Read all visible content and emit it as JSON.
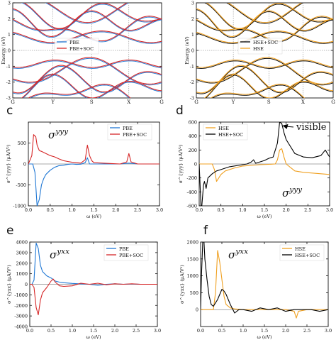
{
  "panel_labels": {
    "c": "c",
    "d": "d",
    "e": "e",
    "f": "f"
  },
  "colors": {
    "blue": "#1f77d4",
    "red": "#d62728",
    "orange": "#f0a020",
    "black": "#000000"
  },
  "chart_data": [
    {
      "id": "bands-pbe",
      "type": "line",
      "ylabel": "Energy (eV)",
      "ylim": [
        -3,
        3
      ],
      "y_ticks": [
        "-3",
        "-2",
        "-1",
        "0",
        "1",
        "2",
        "3"
      ],
      "x_ticks": [
        "G",
        "Y",
        "S",
        "X",
        "G"
      ],
      "legend": [
        "PBE",
        "PBE+SOC"
      ],
      "legend_placement": "center-left",
      "series": [
        {
          "name": "PBE",
          "color": "#1f77d4"
        },
        {
          "name": "PBE+SOC",
          "color": "#d62728"
        }
      ]
    },
    {
      "id": "bands-hse",
      "type": "line",
      "ylabel": "Energy (eV)",
      "ylim": [
        -3,
        3
      ],
      "y_ticks": [
        "-3",
        "-2",
        "-1",
        "0",
        "1",
        "2",
        "3"
      ],
      "x_ticks": [
        "G",
        "Y",
        "S",
        "X",
        "G"
      ],
      "legend": [
        "HSE+SOC",
        "HSE"
      ],
      "legend_placement": "center-left",
      "series": [
        {
          "name": "HSE+SOC",
          "color": "#000000"
        },
        {
          "name": "HSE",
          "color": "#f0a020"
        }
      ]
    },
    {
      "id": "sigma-yyy-pbe",
      "type": "line",
      "ylabel": "σ^{yyy} (μA/V²)",
      "xlabel": "ω (eV)",
      "title_symbol": "σ",
      "title_sup": "yyy",
      "xlim": [
        0,
        3
      ],
      "ylim": [
        -1000,
        1000
      ],
      "y_ticks": [
        "-1000",
        "-500",
        "0",
        "500"
      ],
      "x_ticks": [
        "0.0",
        "0.5",
        "1.0",
        "1.5",
        "2.0",
        "2.5",
        "3.0"
      ],
      "legend_placement": "top-right",
      "series": [
        {
          "name": "PBE",
          "color": "#1f77d4",
          "x": [
            0,
            0.1,
            0.15,
            0.2,
            0.25,
            0.3,
            0.35,
            0.4,
            0.5,
            0.6,
            0.7,
            0.8,
            0.9,
            1.0,
            1.1,
            1.2,
            1.3,
            1.35,
            1.4,
            1.5,
            1.7,
            1.9,
            2.1,
            2.3,
            2.5,
            2.7,
            3.0
          ],
          "y": [
            0,
            0,
            -200,
            -1000,
            -850,
            -500,
            -350,
            -250,
            -150,
            -80,
            -40,
            -30,
            -10,
            0,
            -10,
            -5,
            30,
            150,
            0,
            0,
            0,
            0,
            0,
            20,
            0,
            0,
            0
          ]
        },
        {
          "name": "PBE+SOC",
          "color": "#d62728",
          "x": [
            0,
            0.08,
            0.12,
            0.17,
            0.2,
            0.25,
            0.3,
            0.4,
            0.5,
            0.6,
            0.7,
            0.8,
            0.9,
            1.0,
            1.1,
            1.2,
            1.3,
            1.35,
            1.4,
            1.45,
            1.5,
            1.7,
            1.9,
            2.1,
            2.25,
            2.3,
            2.35,
            2.5,
            2.7,
            3.0
          ],
          "y": [
            0,
            200,
            700,
            650,
            450,
            320,
            300,
            250,
            200,
            170,
            120,
            80,
            60,
            40,
            30,
            20,
            100,
            450,
            200,
            80,
            30,
            20,
            10,
            0,
            50,
            250,
            50,
            0,
            0,
            0
          ]
        }
      ]
    },
    {
      "id": "sigma-yyy-hse",
      "type": "line",
      "ylabel": "σ^{yyy} (μA/V²)",
      "xlabel": "ω (eV)",
      "title_symbol": "σ",
      "title_sup": "yyy",
      "annotation": "visible",
      "xlim": [
        0,
        3
      ],
      "ylim": [
        -600,
        600
      ],
      "y_ticks": [
        "-600",
        "-400",
        "-200",
        "0",
        "200",
        "400",
        "600"
      ],
      "x_ticks": [
        "0.0",
        "0.5",
        "1.0",
        "1.5",
        "2.0",
        "2.5",
        "3.0"
      ],
      "legend_placement": "top-left",
      "series": [
        {
          "name": "HSE",
          "color": "#f0a020",
          "x": [
            0,
            0.3,
            0.35,
            0.4,
            0.5,
            0.6,
            0.8,
            1.0,
            1.2,
            1.4,
            1.6,
            1.75,
            1.8,
            1.85,
            1.9,
            1.95,
            2.0,
            2.1,
            2.2,
            2.4,
            2.6,
            2.8,
            3.0
          ],
          "y": [
            0,
            0,
            -80,
            -250,
            -150,
            -100,
            -60,
            -30,
            -20,
            -10,
            -5,
            0,
            60,
            200,
            220,
            100,
            0,
            -50,
            -100,
            -120,
            -130,
            -140,
            -150
          ]
        },
        {
          "name": "HSE+SOC",
          "color": "#000000",
          "x": [
            0,
            0.04,
            0.06,
            0.1,
            0.12,
            0.16,
            0.2,
            0.3,
            0.4,
            0.5,
            0.7,
            0.9,
            1.1,
            1.2,
            1.25,
            1.3,
            1.5,
            1.6,
            1.7,
            1.8,
            1.85,
            1.9,
            1.95,
            2.0,
            2.05,
            2.2,
            2.4,
            2.6,
            2.8,
            2.9,
            2.95,
            3.0
          ],
          "y": [
            0,
            -600,
            -600,
            -300,
            -250,
            -350,
            -200,
            -140,
            -100,
            -80,
            -40,
            -20,
            0,
            30,
            60,
            10,
            50,
            80,
            100,
            300,
            600,
            580,
            450,
            350,
            300,
            150,
            100,
            90,
            120,
            200,
            150,
            100
          ]
        }
      ]
    },
    {
      "id": "sigma-yxx-pbe",
      "type": "line",
      "ylabel": "σ^{yxx} (μA/V²)",
      "xlabel": "ω (eV)",
      "title_symbol": "σ",
      "title_sup": "yxx",
      "xlim": [
        0,
        3
      ],
      "ylim": [
        -4000,
        4000
      ],
      "y_ticks": [
        "-4000",
        "-3000",
        "-2000",
        "-1000",
        "0",
        "1000",
        "2000",
        "3000",
        "4000"
      ],
      "x_ticks": [
        "0.0",
        "0.5",
        "1.0",
        "1.5",
        "2.0",
        "2.5",
        "3.0"
      ],
      "legend_placement": "top-right",
      "series": [
        {
          "name": "PBE",
          "color": "#1f77d4",
          "x": [
            0,
            0.05,
            0.1,
            0.15,
            0.2,
            0.25,
            0.3,
            0.4,
            0.5,
            0.6,
            0.7,
            0.8,
            1.0,
            1.2,
            1.4,
            1.6,
            1.8,
            2.0,
            2.2,
            2.4,
            2.6,
            2.8,
            3.0
          ],
          "y": [
            0,
            0,
            400,
            3900,
            3400,
            1800,
            1200,
            800,
            600,
            300,
            200,
            150,
            80,
            40,
            0,
            -100,
            0,
            50,
            0,
            30,
            0,
            0,
            0
          ]
        },
        {
          "name": "PBE+SOC",
          "color": "#d62728",
          "x": [
            0,
            0.05,
            0.1,
            0.15,
            0.2,
            0.25,
            0.3,
            0.4,
            0.5,
            0.55,
            0.6,
            0.7,
            0.8,
            1.0,
            1.2,
            1.4,
            1.6,
            1.8,
            2.0,
            2.2,
            2.4,
            2.6,
            2.8,
            3.0
          ],
          "y": [
            0,
            0,
            -300,
            -2200,
            -2900,
            -1500,
            -800,
            -300,
            300,
            500,
            200,
            -150,
            -200,
            -150,
            100,
            0,
            100,
            -50,
            50,
            0,
            50,
            0,
            0,
            0
          ]
        }
      ]
    },
    {
      "id": "sigma-yxx-hse",
      "type": "line",
      "ylabel": "σ^{yxx} (μA/V²)",
      "xlabel": "ω (eV)",
      "title_symbol": "σ",
      "title_sup": "yxx",
      "xlim": [
        0,
        3
      ],
      "ylim": [
        -500,
        2000
      ],
      "y_ticks": [
        "0",
        "500",
        "1000",
        "1500",
        "2000"
      ],
      "x_ticks": [
        "0.0",
        "0.5",
        "1.0",
        "1.5",
        "2.0",
        "2.5",
        "3.0"
      ],
      "legend_placement": "top-right",
      "series": [
        {
          "name": "HSE",
          "color": "#f0a020",
          "x": [
            0,
            0.3,
            0.35,
            0.4,
            0.45,
            0.5,
            0.55,
            0.6,
            0.7,
            0.8,
            1.0,
            1.2,
            1.4,
            1.6,
            1.8,
            2.0,
            2.2,
            2.25,
            2.3,
            2.5,
            2.7,
            3.0
          ],
          "y": [
            0,
            0,
            500,
            1750,
            1400,
            900,
            400,
            150,
            50,
            20,
            0,
            0,
            0,
            0,
            0,
            0,
            -50,
            -250,
            -50,
            0,
            0,
            0
          ]
        },
        {
          "name": "HSE+SOC",
          "color": "#000000",
          "x": [
            0,
            0.02,
            0.05,
            0.08,
            0.1,
            0.15,
            0.2,
            0.25,
            0.3,
            0.4,
            0.5,
            0.55,
            0.6,
            0.7,
            0.8,
            0.9,
            1.0,
            1.2,
            1.4,
            1.6,
            1.8,
            2.0,
            2.2,
            2.4,
            2.6,
            2.8,
            3.0
          ],
          "y": [
            0,
            1000,
            2100,
            2050,
            1500,
            900,
            400,
            150,
            100,
            300,
            600,
            550,
            450,
            150,
            -100,
            0,
            0,
            -50,
            50,
            0,
            50,
            -50,
            0,
            0,
            0,
            -50,
            0
          ]
        }
      ]
    }
  ]
}
